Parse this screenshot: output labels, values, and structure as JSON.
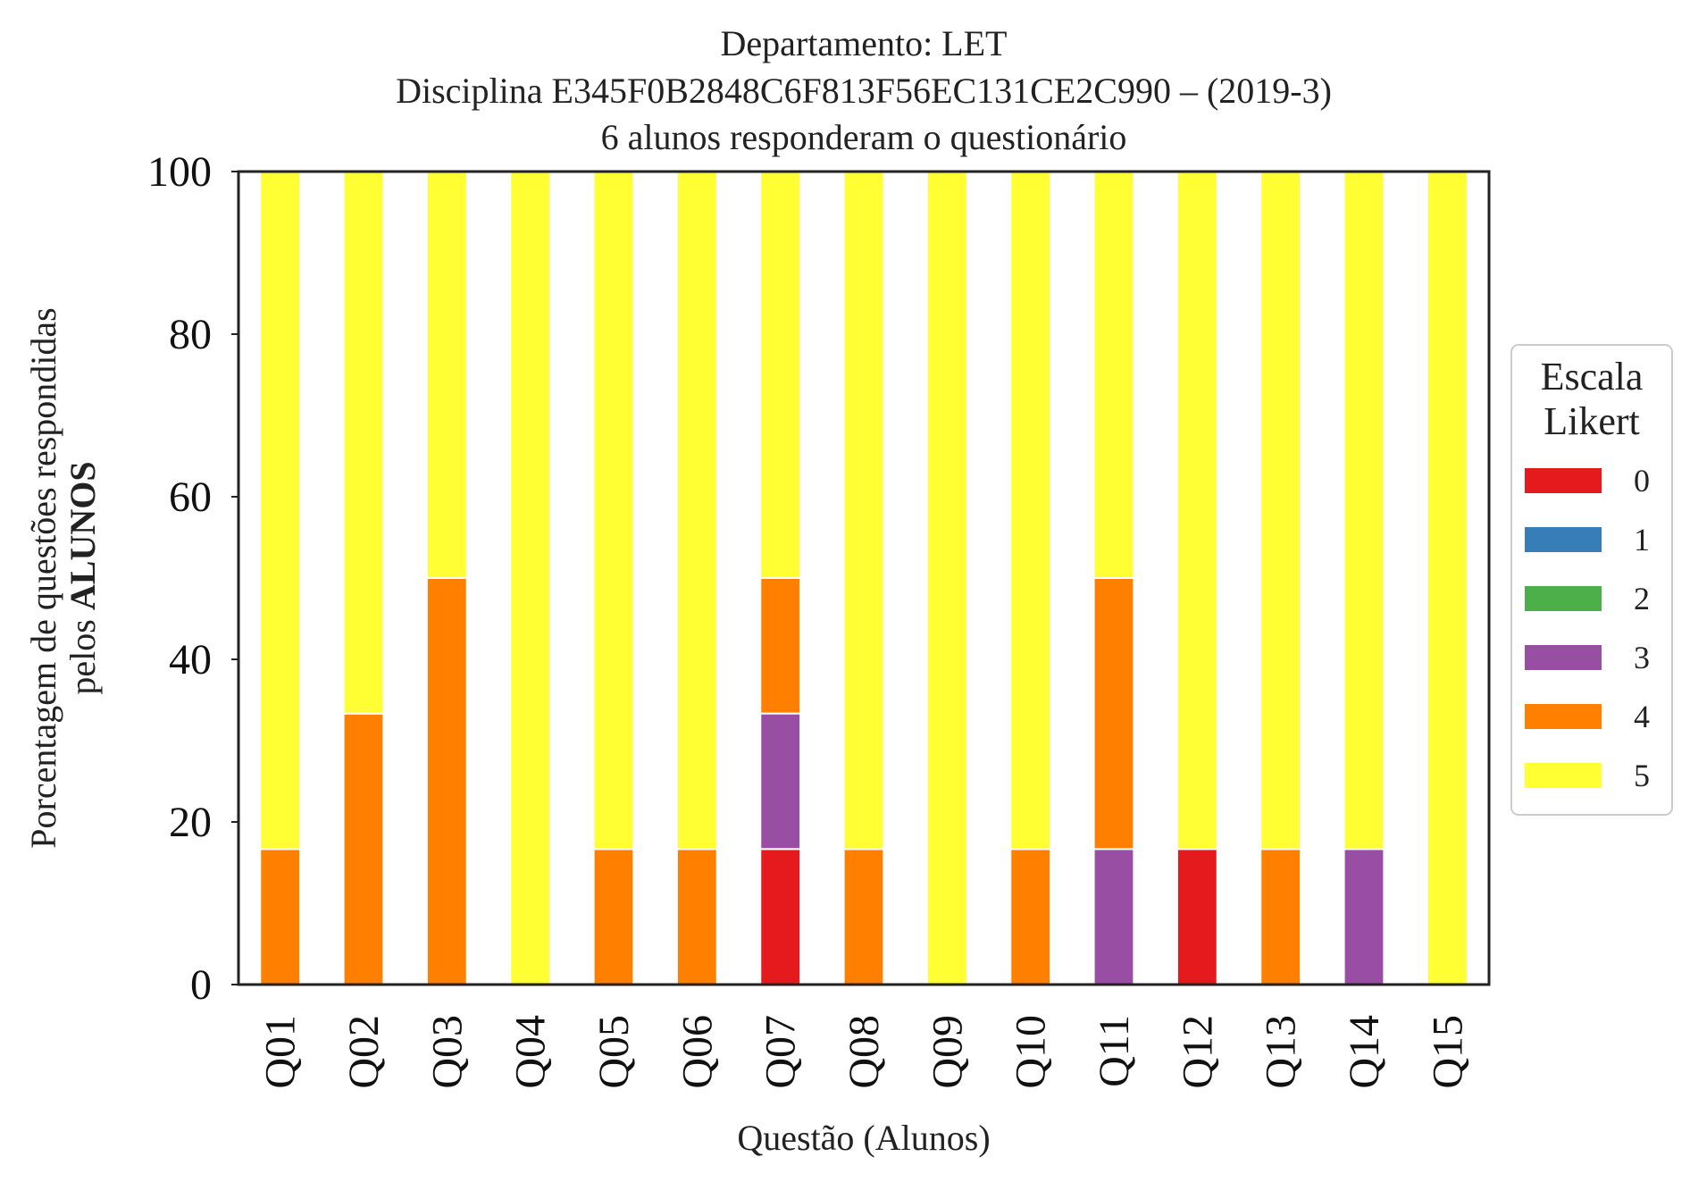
{
  "chart_data": {
    "type": "bar",
    "stacked": true,
    "title_lines": [
      "Departamento: LET",
      "Disciplina E345F0B2848C6F813F56EC131CE2C990 – (2019-3)",
      "6 alunos responderam o questionário"
    ],
    "xlabel": "Questão (Alunos)",
    "ylabel_line1": "Porcentagem de questões respondidas",
    "ylabel_line2_prefix": "pelos ",
    "ylabel_line2_bold": "ALUNOS",
    "ylim": [
      0,
      100
    ],
    "yticks": [
      "0",
      "20",
      "40",
      "60",
      "80",
      "100"
    ],
    "categories": [
      "Q01",
      "Q02",
      "Q03",
      "Q04",
      "Q05",
      "Q06",
      "Q07",
      "Q08",
      "Q09",
      "Q10",
      "Q11",
      "Q12",
      "Q13",
      "Q14",
      "Q15"
    ],
    "legend": {
      "title_lines": [
        "Escala",
        "Likert"
      ],
      "placement": "right"
    },
    "series": [
      {
        "name": "0",
        "color": "#e41a1c",
        "values": [
          0,
          0,
          0,
          0,
          0,
          0,
          16.67,
          0,
          0,
          0,
          0,
          16.67,
          0,
          0,
          0
        ]
      },
      {
        "name": "1",
        "color": "#377eb8",
        "values": [
          0,
          0,
          0,
          0,
          0,
          0,
          0,
          0,
          0,
          0,
          0,
          0,
          0,
          0,
          0
        ]
      },
      {
        "name": "2",
        "color": "#4daf4a",
        "values": [
          0,
          0,
          0,
          0,
          0,
          0,
          0,
          0,
          0,
          0,
          0,
          0,
          0,
          0,
          0
        ]
      },
      {
        "name": "3",
        "color": "#984ea3",
        "values": [
          0,
          0,
          0,
          0,
          0,
          0,
          16.67,
          0,
          0,
          0,
          16.67,
          0,
          0,
          16.67,
          0
        ]
      },
      {
        "name": "4",
        "color": "#ff7f00",
        "values": [
          16.67,
          33.33,
          50,
          0,
          16.67,
          16.67,
          16.67,
          16.67,
          0,
          16.67,
          33.33,
          0,
          16.67,
          0,
          0
        ]
      },
      {
        "name": "5",
        "color": "#ffff33",
        "values": [
          83.33,
          66.67,
          50,
          100,
          83.33,
          83.33,
          50,
          83.33,
          100,
          83.33,
          50,
          83.33,
          83.33,
          83.33,
          100
        ]
      }
    ]
  }
}
